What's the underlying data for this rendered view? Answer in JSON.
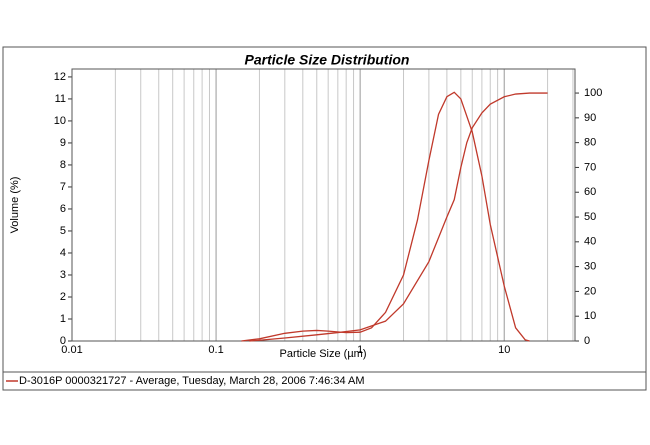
{
  "chart_data": {
    "type": "line",
    "title": "Particle Size Distribution",
    "x_label": "Particle Size (µm)",
    "y_label": "Volume (%)",
    "x_scale": "log",
    "grid": "x",
    "xlim": [
      0.01,
      31
    ],
    "xticks": [
      0.01,
      0.1,
      1,
      10
    ],
    "ylim": [
      0,
      12.36
    ],
    "yticks": [
      0,
      1,
      2,
      3,
      4,
      5,
      6,
      7,
      8,
      9,
      10,
      11,
      12
    ],
    "y2lim": [
      0,
      109.7
    ],
    "y2ticks": [
      0,
      10,
      20,
      30,
      40,
      50,
      60,
      70,
      80,
      90,
      100
    ],
    "series": [
      {
        "name": "D-3016P 0000321727 - Average, Tuesday, March 28, 2006 7:46:34 AM",
        "color": "#c0392b",
        "x": [
          0.15,
          0.2,
          0.3,
          0.4,
          0.5,
          0.6,
          0.8,
          1.0,
          1.2,
          1.5,
          2,
          2.5,
          3,
          3.5,
          4,
          4.5,
          5,
          6,
          7,
          8,
          10,
          12,
          14,
          15
        ],
        "values": [
          0,
          0.1,
          0.35,
          0.45,
          0.48,
          0.45,
          0.38,
          0.4,
          0.6,
          1.3,
          3.0,
          5.5,
          8.2,
          10.3,
          11.1,
          11.3,
          11.0,
          9.5,
          7.5,
          5.3,
          2.5,
          0.6,
          0.05,
          0
        ]
      },
      {
        "color": "#c0392b",
        "axis": "y2",
        "x": [
          0.17,
          0.2,
          0.3,
          0.5,
          0.7,
          1,
          1.5,
          2,
          3,
          4,
          4.5,
          5,
          5.5,
          6,
          7,
          8,
          10,
          12,
          15,
          20
        ],
        "values": [
          0,
          0.3,
          1.2,
          2.5,
          3.4,
          4.5,
          8,
          15,
          32,
          50,
          57,
          70,
          80,
          86,
          92,
          95.5,
          98.5,
          99.6,
          100,
          100
        ]
      }
    ]
  }
}
